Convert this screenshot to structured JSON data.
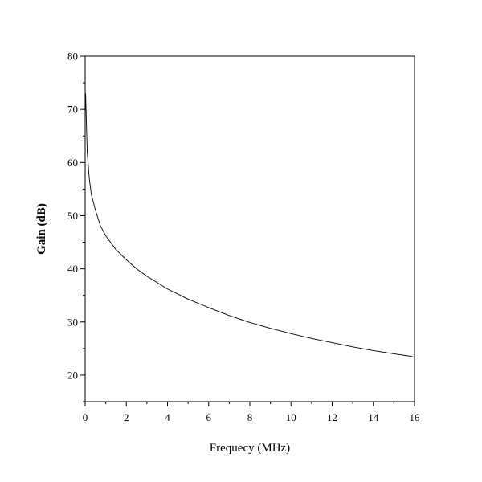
{
  "chart_data": {
    "type": "line",
    "title": "",
    "xlabel": "Frequecy (MHz)",
    "ylabel": "Gain (dB)",
    "xlim": [
      0,
      16
    ],
    "ylim": [
      15,
      80
    ],
    "xticks": [
      "0",
      "2",
      "4",
      "6",
      "8",
      "10",
      "12",
      "14",
      "16"
    ],
    "yticks": [
      "20",
      "30",
      "40",
      "50",
      "60",
      "70",
      "80"
    ],
    "grid": false,
    "legend": "none",
    "series": [
      {
        "color": "#000000",
        "x": [
          0.02,
          0.1,
          0.2,
          0.3,
          0.5,
          0.75,
          1.0,
          1.5,
          2.0,
          2.5,
          3.0,
          4.0,
          5.0,
          6.0,
          7.0,
          8.0,
          9.0,
          10.0,
          11.0,
          12.0,
          13.0,
          14.0,
          15.0,
          15.9
        ],
        "y": [
          73.0,
          62.0,
          57.0,
          54.0,
          51.0,
          48.0,
          46.2,
          43.6,
          41.7,
          40.0,
          38.6,
          36.2,
          34.3,
          32.7,
          31.2,
          29.9,
          28.8,
          27.8,
          26.9,
          26.1,
          25.3,
          24.6,
          24.0,
          23.5
        ]
      }
    ]
  }
}
